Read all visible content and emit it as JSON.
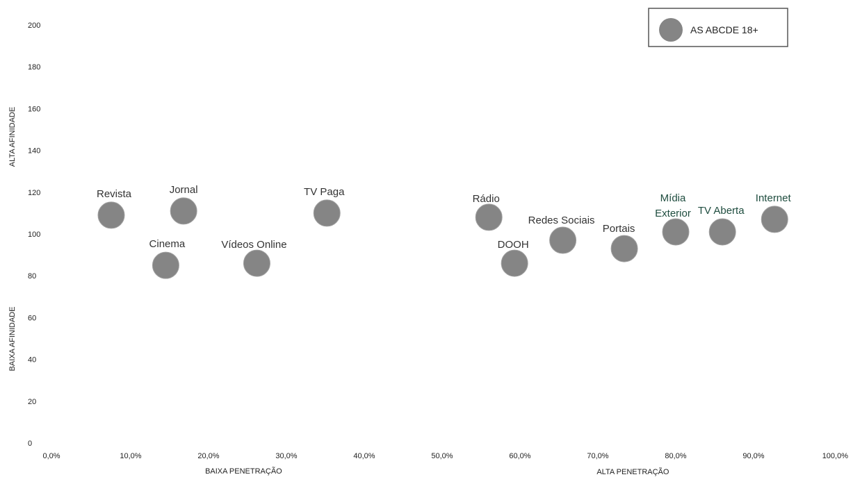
{
  "chart_data": {
    "type": "scatter",
    "xlim": [
      0,
      100
    ],
    "ylim": [
      0,
      200
    ],
    "x_ticks": [
      "0,0%",
      "10,0%",
      "20,0%",
      "30,0%",
      "40,0%",
      "50,0%",
      "60,0%",
      "70,0%",
      "80,0%",
      "90,0%",
      "100,0%"
    ],
    "y_ticks": [
      "0",
      "20",
      "40",
      "60",
      "80",
      "100",
      "120",
      "140",
      "160",
      "180",
      "200"
    ],
    "x_notes": {
      "low": "BAIXA PENETRAÇÃO",
      "high": "ALTA PENETRAÇÃO"
    },
    "y_notes": {
      "high": "ALTA AFINIDADE",
      "low": "BAIXA AFINIDADE"
    },
    "grid": false,
    "legend_position": "top-right",
    "series": [
      {
        "name": "AS ABCDE 18+",
        "color": "#858585",
        "points": [
          {
            "label": "Revista",
            "x": 7.5,
            "y": 109,
            "label_color": "#333333"
          },
          {
            "label": "Cinema",
            "x": 14.5,
            "y": 85,
            "label_color": "#333333"
          },
          {
            "label": "Jornal",
            "x": 16.8,
            "y": 111,
            "label_color": "#333333"
          },
          {
            "label": "Vídeos Online",
            "x": 26.2,
            "y": 86,
            "label_color": "#333333"
          },
          {
            "label": "TV Paga",
            "x": 35.2,
            "y": 110,
            "label_color": "#333333"
          },
          {
            "label": "Rádio",
            "x": 56,
            "y": 108,
            "label_color": "#333333"
          },
          {
            "label": "DOOH",
            "x": 59.3,
            "y": 86,
            "label_color": "#333333"
          },
          {
            "label": "Redes Sociais",
            "x": 65.5,
            "y": 97,
            "label_color": "#333333"
          },
          {
            "label": "Portais",
            "x": 73.4,
            "y": 93,
            "label_color": "#333333"
          },
          {
            "label": "Mídia Exterior",
            "x": 80,
            "y": 101,
            "label_color": "#1f4d3f"
          },
          {
            "label": "TV Aberta",
            "x": 86,
            "y": 101,
            "label_color": "#1f4d3f"
          },
          {
            "label": "Internet",
            "x": 92.7,
            "y": 107,
            "label_color": "#1f4d3f"
          }
        ]
      }
    ]
  }
}
